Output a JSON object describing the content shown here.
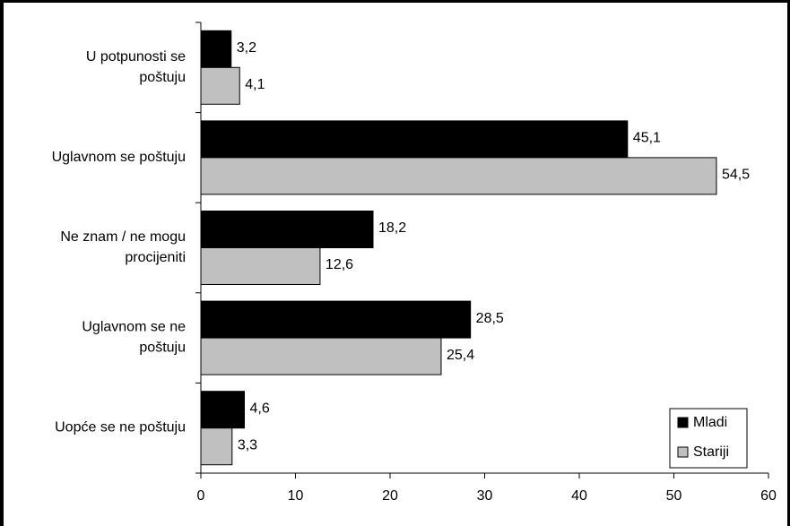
{
  "chart_data": {
    "type": "bar",
    "orientation": "horizontal",
    "categories": [
      [
        "U potpunosti se",
        "poštuju"
      ],
      [
        "Uglavnom se poštuju"
      ],
      [
        "Ne znam / ne mogu",
        "procijeniti"
      ],
      [
        "Uglavnom se ne",
        "poštuju"
      ],
      [
        "Uopće se ne poštuju"
      ]
    ],
    "series": [
      {
        "name": "Mladi",
        "color": "#000000",
        "values": [
          3.2,
          45.1,
          18.2,
          28.5,
          4.6
        ],
        "labels": [
          "3,2",
          "45,1",
          "18,2",
          "28,5",
          "4,6"
        ]
      },
      {
        "name": "Stariji",
        "color": "#c0c0c0",
        "values": [
          4.1,
          54.5,
          12.6,
          25.4,
          3.3
        ],
        "labels": [
          "4,1",
          "54,5",
          "12,6",
          "25,4",
          "3,3"
        ]
      }
    ],
    "xlim": [
      0,
      60
    ],
    "xticks": [
      0,
      10,
      20,
      30,
      40,
      50,
      60
    ],
    "xtick_labels": [
      "0",
      "10",
      "20",
      "30",
      "40",
      "50",
      "60"
    ],
    "grid": false,
    "legend_position": "bottom-right"
  }
}
